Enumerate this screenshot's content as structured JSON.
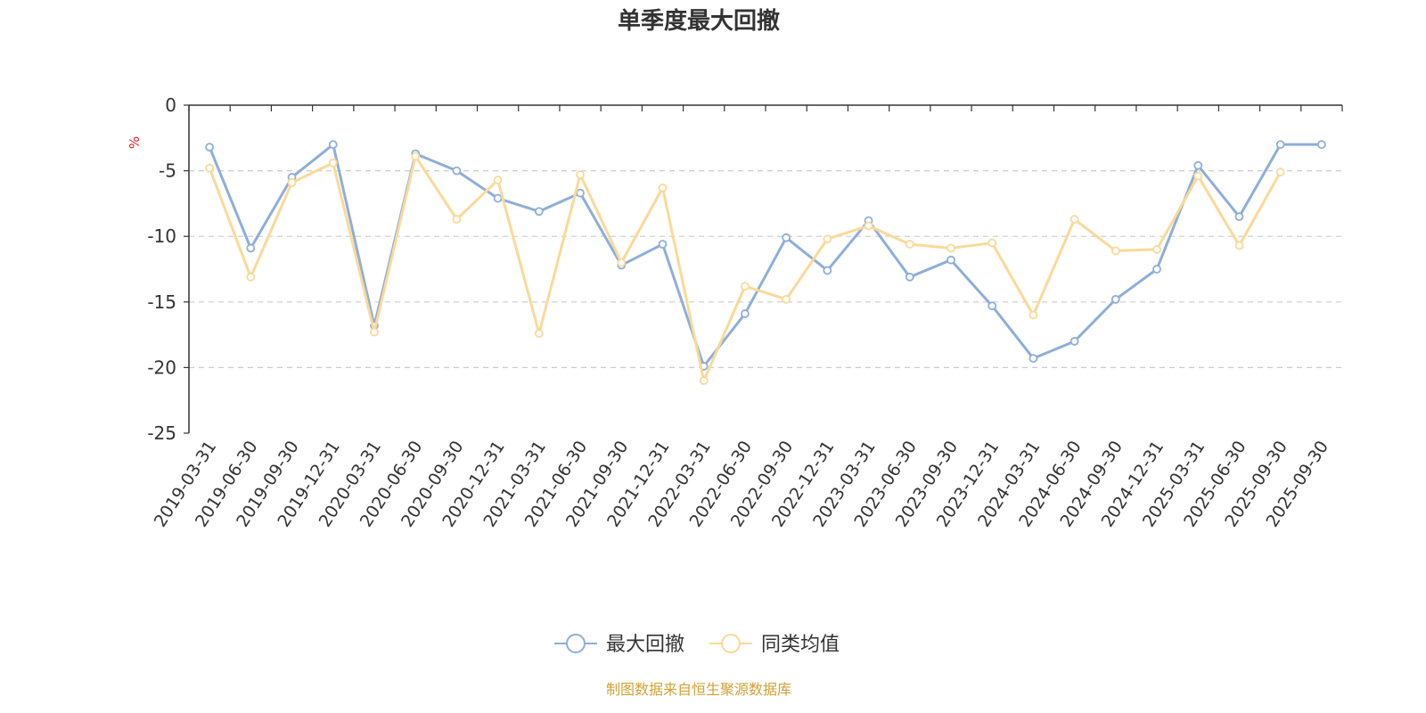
{
  "chart_data": {
    "type": "line",
    "title": "单季度最大回撤",
    "ylabel": "%",
    "ylim": [
      -25,
      0
    ],
    "yticks": [
      0,
      -5,
      -10,
      -15,
      -20,
      -25
    ],
    "grid": true,
    "legend_position": "bottom",
    "categories": [
      "2019-03-31",
      "2019-06-30",
      "2019-09-30",
      "2019-12-31",
      "2020-03-31",
      "2020-06-30",
      "2020-09-30",
      "2020-12-31",
      "2021-03-31",
      "2021-06-30",
      "2021-09-30",
      "2021-12-31",
      "2022-03-31",
      "2022-06-30",
      "2022-09-30",
      "2022-12-31",
      "2023-03-31",
      "2023-06-30",
      "2023-09-30",
      "2023-12-31",
      "2024-03-31",
      "2024-06-30",
      "2024-09-30",
      "2024-12-31",
      "2025-03-31",
      "2025-06-30",
      "2025-09-30",
      "2025-09-30"
    ],
    "series": [
      {
        "name": "最大回撤",
        "color": "#8eaedb",
        "values": [
          -3.2,
          -10.9,
          -5.5,
          -3.0,
          -16.8,
          -3.7,
          -5.0,
          -7.1,
          -8.1,
          -6.7,
          -12.2,
          -10.6,
          -19.9,
          -15.9,
          -10.1,
          -12.6,
          -8.8,
          -13.1,
          -11.8,
          -15.3,
          -19.3,
          -18.0,
          -14.8,
          -12.5,
          -4.6,
          -8.5,
          -3.0,
          -3.0
        ]
      },
      {
        "name": "同类均值",
        "color": "#fbd997",
        "values": [
          -4.8,
          -13.1,
          -5.9,
          -4.4,
          -17.3,
          -3.9,
          -8.7,
          -5.7,
          -17.4,
          -5.3,
          -12.0,
          -6.3,
          -21.0,
          -13.8,
          -14.8,
          -10.2,
          -9.2,
          -10.6,
          -10.9,
          -10.5,
          -16.0,
          -8.7,
          -11.1,
          -11.0,
          -5.4,
          -10.7,
          -5.1,
          null
        ]
      }
    ]
  },
  "source_text": "制图数据来自恒生聚源数据库",
  "colors": {
    "source": "#d4a035",
    "unit": "#e02020",
    "axis": "#333333",
    "grid": "#cccccc"
  }
}
